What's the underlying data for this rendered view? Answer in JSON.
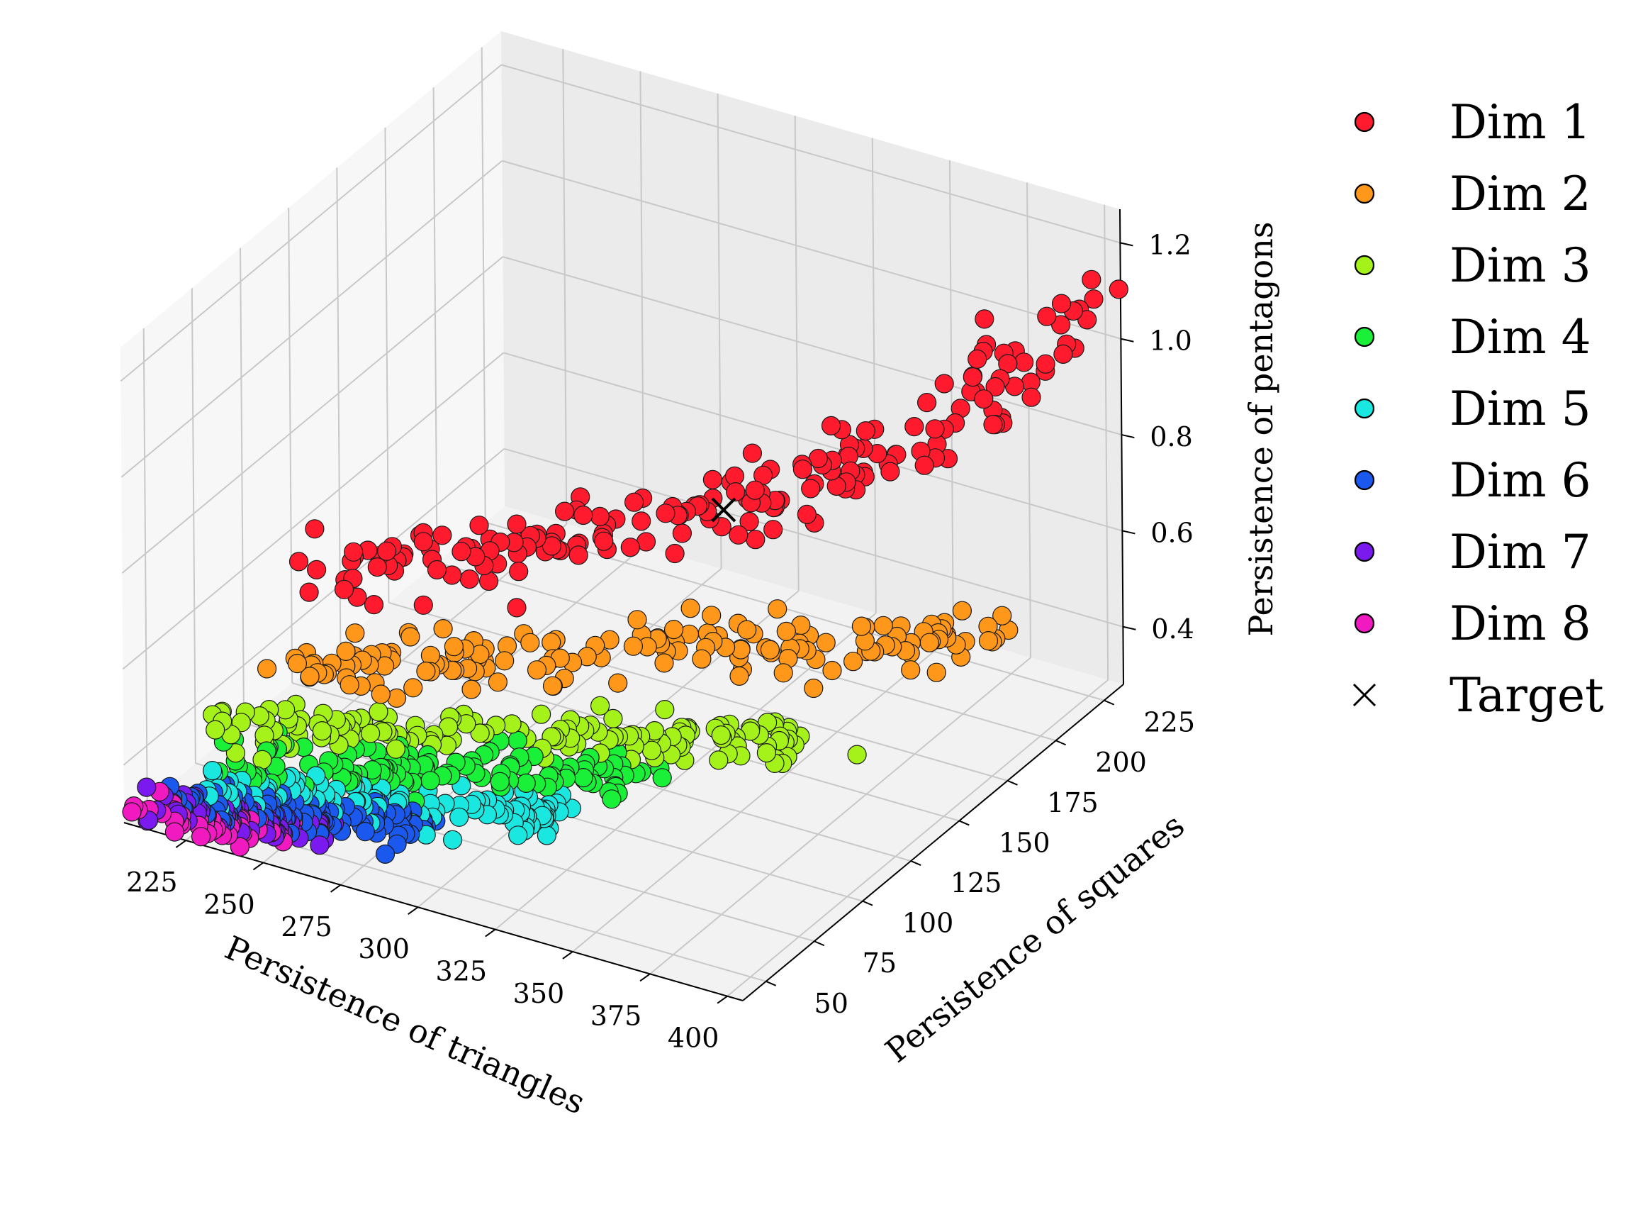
{
  "chart_data": {
    "type": "scatter",
    "projection": "3d",
    "title": "",
    "xlabel": "Persistence of triangles",
    "ylabel": "Persistence of squares",
    "zlabel": "Persistence of pentagons",
    "xlim": [
      205,
      405
    ],
    "ylim": [
      38,
      235
    ],
    "zlim": [
      0.28,
      1.27
    ],
    "xticks": [
      "225",
      "250",
      "275",
      "300",
      "325",
      "350",
      "375",
      "400"
    ],
    "yticks": [
      "50",
      "75",
      "100",
      "125",
      "150",
      "175",
      "200",
      "225"
    ],
    "zticks": [
      "0.4",
      "0.6",
      "0.8",
      "1.0",
      "1.2"
    ],
    "grid": true,
    "legend_position": "right",
    "series": [
      {
        "name": "Dim 1",
        "color": "#ff1a2e",
        "path": [
          [
            212,
            125,
            0.52
          ],
          [
            240,
            135,
            0.57
          ],
          [
            265,
            145,
            0.61
          ],
          [
            290,
            158,
            0.66
          ],
          [
            315,
            170,
            0.7
          ],
          [
            340,
            182,
            0.76
          ],
          [
            365,
            195,
            0.85
          ],
          [
            385,
            206,
            0.98
          ],
          [
            400,
            222,
            1.12
          ]
        ],
        "spread": [
          7,
          8,
          0.025
        ],
        "count": 200
      },
      {
        "name": "Dim 2",
        "color": "#ff981a",
        "path": [
          [
            220,
            95,
            0.44
          ],
          [
            250,
            105,
            0.47
          ],
          [
            280,
            118,
            0.5
          ],
          [
            315,
            135,
            0.52
          ],
          [
            350,
            150,
            0.55
          ],
          [
            385,
            165,
            0.57
          ],
          [
            398,
            172,
            0.58
          ]
        ],
        "spread": [
          6,
          7,
          0.018
        ],
        "count": 160
      },
      {
        "name": "Dim 3",
        "color": "#a4f21a",
        "path": [
          [
            220,
            72,
            0.4
          ],
          [
            250,
            80,
            0.41
          ],
          [
            285,
            95,
            0.43
          ],
          [
            320,
            108,
            0.44
          ],
          [
            350,
            120,
            0.45
          ],
          [
            372,
            128,
            0.46
          ]
        ],
        "spread": [
          6,
          6,
          0.015
        ],
        "count": 150
      },
      {
        "name": "Dim 4",
        "color": "#1af038",
        "path": [
          [
            220,
            60,
            0.37
          ],
          [
            250,
            68,
            0.38
          ],
          [
            280,
            80,
            0.39
          ],
          [
            310,
            92,
            0.4
          ],
          [
            330,
            100,
            0.405
          ]
        ],
        "spread": [
          6,
          6,
          0.012
        ],
        "count": 120
      },
      {
        "name": "Dim 5",
        "color": "#1ae8e0",
        "path": [
          [
            220,
            52,
            0.35
          ],
          [
            250,
            58,
            0.355
          ],
          [
            280,
            66,
            0.36
          ],
          [
            305,
            75,
            0.365
          ],
          [
            318,
            80,
            0.37
          ]
        ],
        "spread": [
          6,
          5,
          0.01
        ],
        "count": 110
      },
      {
        "name": "Dim 6",
        "color": "#1a58ee",
        "path": [
          [
            218,
            47,
            0.33
          ],
          [
            245,
            52,
            0.335
          ],
          [
            270,
            58,
            0.34
          ],
          [
            288,
            62,
            0.345
          ]
        ],
        "spread": [
          6,
          5,
          0.008
        ],
        "count": 110
      },
      {
        "name": "Dim 7",
        "color": "#7a1aee",
        "path": [
          [
            215,
            43,
            0.32
          ],
          [
            240,
            47,
            0.32
          ],
          [
            265,
            51,
            0.325
          ]
        ],
        "spread": [
          5,
          4,
          0.008
        ],
        "count": 70
      },
      {
        "name": "Dim 8",
        "color": "#f01ac0",
        "path": [
          [
            212,
            41,
            0.31
          ],
          [
            232,
            43,
            0.31
          ],
          [
            248,
            45,
            0.315
          ]
        ],
        "spread": [
          5,
          3,
          0.006
        ],
        "count": 50
      }
    ],
    "target": {
      "name": "Target",
      "x": 320,
      "y": 165,
      "z": 0.72
    }
  }
}
